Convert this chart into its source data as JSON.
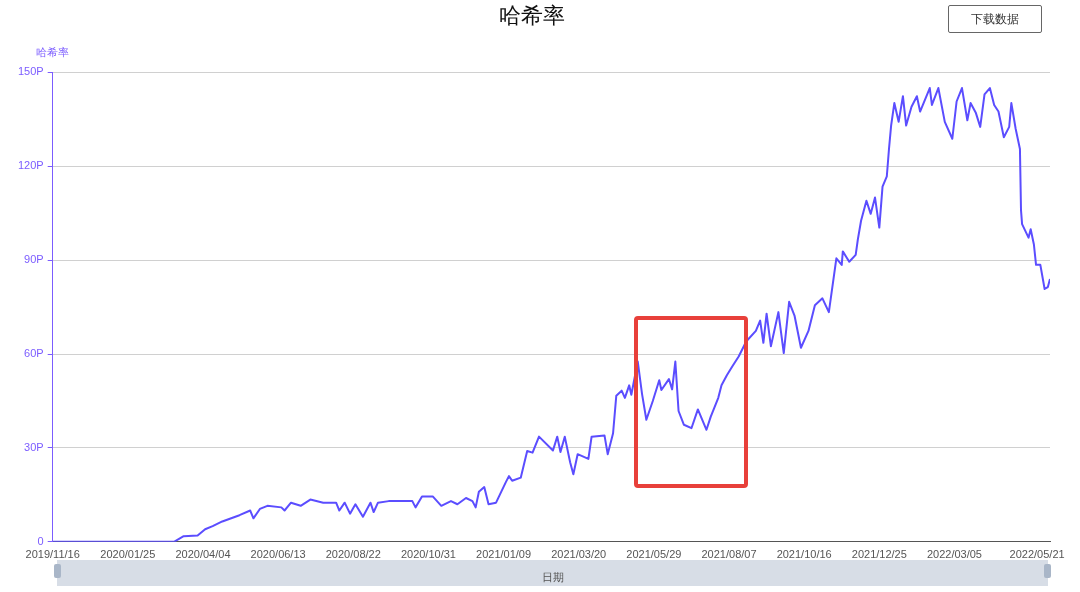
{
  "chart_data": {
    "type": "line",
    "title": "哈希率",
    "ylabel": "哈希率",
    "xlabel": "日期",
    "annotations": [
      "下载数据"
    ],
    "xlim": [
      "2019-11-16",
      "2022-06-02"
    ],
    "xticks": [
      {
        "value": "2019-11-16",
        "label": "2019/11/16"
      },
      {
        "value": "2020-01-25",
        "label": "2020/01/25"
      },
      {
        "value": "2020-04-04",
        "label": "2020/04/04"
      },
      {
        "value": "2020-06-13",
        "label": "2020/06/13"
      },
      {
        "value": "2020-08-22",
        "label": "2020/08/22"
      },
      {
        "value": "2020-10-31",
        "label": "2020/10/31"
      },
      {
        "value": "2021-01-09",
        "label": "2021/01/09"
      },
      {
        "value": "2021-03-20",
        "label": "2021/03/20"
      },
      {
        "value": "2021-05-29",
        "label": "2021/05/29"
      },
      {
        "value": "2021-08-07",
        "label": "2021/08/07"
      },
      {
        "value": "2021-10-16",
        "label": "2021/10/16"
      },
      {
        "value": "2021-12-25",
        "label": "2021/12/25"
      },
      {
        "value": "2022-03-05",
        "label": "2022/03/05"
      },
      {
        "value": "2022-05-21",
        "label": "2022/05/21"
      }
    ],
    "ylim": [
      0,
      150
    ],
    "yticks": [
      0,
      {
        "value": 30,
        "label": "30P"
      },
      {
        "value": 60,
        "label": "60P"
      },
      {
        "value": 90,
        "label": "90P"
      },
      {
        "value": 120,
        "label": "120P"
      },
      {
        "value": 150,
        "label": "150P"
      }
    ],
    "grid": "y",
    "legend": false,
    "marker": "none",
    "line_style": "solid",
    "series": [
      {
        "color": "#5b4dff",
        "x": [
          "2019-11-16",
          "2020-03-08",
          "2020-03-17",
          "2020-03-30",
          "2020-04-06",
          "2020-04-13",
          "2020-04-22",
          "2020-05-08",
          "2020-05-18",
          "2020-05-21",
          "2020-05-27",
          "2020-06-03",
          "2020-06-16",
          "2020-06-19",
          "2020-06-25",
          "2020-07-04",
          "2020-07-13",
          "2020-07-25",
          "2020-08-06",
          "2020-08-09",
          "2020-08-14",
          "2020-08-19",
          "2020-08-24",
          "2020-08-31",
          "2020-09-07",
          "2020-09-10",
          "2020-09-14",
          "2020-09-24",
          "2020-10-16",
          "2020-10-19",
          "2020-10-25",
          "2020-11-04",
          "2020-11-12",
          "2020-11-21",
          "2020-11-27",
          "2020-12-05",
          "2020-12-11",
          "2020-12-14",
          "2020-12-17",
          "2020-12-22",
          "2020-12-26",
          "2021-01-02",
          "2021-01-11",
          "2021-01-14",
          "2021-01-17",
          "2021-01-25",
          "2021-01-31",
          "2021-02-05",
          "2021-02-11",
          "2021-02-24",
          "2021-02-28",
          "2021-03-03",
          "2021-03-07",
          "2021-03-12",
          "2021-03-15",
          "2021-03-19",
          "2021-03-29",
          "2021-04-01",
          "2021-04-13",
          "2021-04-16",
          "2021-04-21",
          "2021-04-24",
          "2021-04-29",
          "2021-05-02",
          "2021-05-06",
          "2021-05-08",
          "2021-05-14",
          "2021-05-18",
          "2021-05-22",
          "2021-05-28",
          "2021-06-03",
          "2021-06-05",
          "2021-06-12",
          "2021-06-15",
          "2021-06-18",
          "2021-06-21",
          "2021-06-26",
          "2021-07-03",
          "2021-07-09",
          "2021-07-17",
          "2021-07-21",
          "2021-07-28",
          "2021-07-31",
          "2021-08-05",
          "2021-08-10",
          "2021-08-16",
          "2021-08-23",
          "2021-09-01",
          "2021-09-05",
          "2021-09-08",
          "2021-09-11",
          "2021-09-15",
          "2021-09-22",
          "2021-09-27",
          "2021-10-02",
          "2021-10-07",
          "2021-10-13",
          "2021-10-20",
          "2021-10-26",
          "2021-11-02",
          "2021-11-08",
          "2021-11-15",
          "2021-11-20",
          "2021-11-21",
          "2021-11-27",
          "2021-12-03",
          "2021-12-05",
          "2021-12-08",
          "2021-12-13",
          "2021-12-17",
          "2021-12-21",
          "2021-12-25",
          "2021-12-28",
          "2022-01-01",
          "2022-01-03",
          "2022-01-05",
          "2022-01-08",
          "2022-01-12",
          "2022-01-16",
          "2022-01-19",
          "2022-01-24",
          "2022-01-29",
          "2022-02-01",
          "2022-02-10",
          "2022-02-12",
          "2022-02-18",
          "2022-02-24",
          "2022-03-03",
          "2022-03-07",
          "2022-03-12",
          "2022-03-17",
          "2022-03-20",
          "2022-03-25",
          "2022-03-29",
          "2022-04-02",
          "2022-04-07",
          "2022-04-11",
          "2022-04-15",
          "2022-04-20",
          "2022-04-25",
          "2022-04-27",
          "2022-05-01",
          "2022-05-05",
          "2022-05-06",
          "2022-05-07",
          "2022-05-13",
          "2022-05-15",
          "2022-05-18",
          "2022-05-20",
          "2022-05-24",
          "2022-05-28",
          "2022-05-31",
          "2022-06-02"
        ],
        "values": [
          0,
          0,
          1.8,
          2,
          4,
          5,
          6.5,
          8.5,
          10,
          7.5,
          10.5,
          11.5,
          11,
          10,
          12.5,
          11.5,
          13.5,
          12.5,
          12.5,
          10,
          12.5,
          9,
          12,
          8,
          12.5,
          9.5,
          12.5,
          13,
          13,
          11,
          14.5,
          14.5,
          11.5,
          13,
          12,
          14,
          13,
          11,
          16,
          17.5,
          12,
          12.5,
          19,
          21,
          19.5,
          20.5,
          29,
          28.5,
          33.6,
          29.2,
          33.6,
          28.7,
          33.6,
          25.4,
          21.6,
          28,
          26.5,
          33.6,
          34,
          28,
          34.7,
          46.7,
          48.3,
          46,
          50,
          47,
          57.6,
          47.2,
          39,
          45,
          51.6,
          48.5,
          52,
          48.7,
          57.6,
          41.8,
          37.4,
          36.3,
          42.3,
          35.8,
          40,
          46,
          50,
          53.2,
          56,
          59.2,
          64,
          67.4,
          70.7,
          63.6,
          72.9,
          62.5,
          73.4,
          60.3,
          76.7,
          72.3,
          62,
          67.4,
          75.6,
          77.8,
          73.4,
          90.6,
          88.5,
          92.8,
          89.5,
          91.7,
          96.6,
          102.6,
          109,
          104.8,
          110,
          100.4,
          113.5,
          116.8,
          125.5,
          133,
          140.2,
          134.2,
          142.4,
          133,
          139,
          142.4,
          137.5,
          145,
          139.6,
          145,
          134.2,
          128.8,
          140.7,
          145,
          134.7,
          140.2,
          137,
          132.6,
          143,
          145,
          139.6,
          137.5,
          129.3,
          132.6,
          140.2,
          132,
          125.5,
          105.9,
          101.5,
          97.2,
          99.9,
          95,
          88.5,
          88.5,
          80.8,
          81.4,
          84
        ]
      }
    ]
  }
}
